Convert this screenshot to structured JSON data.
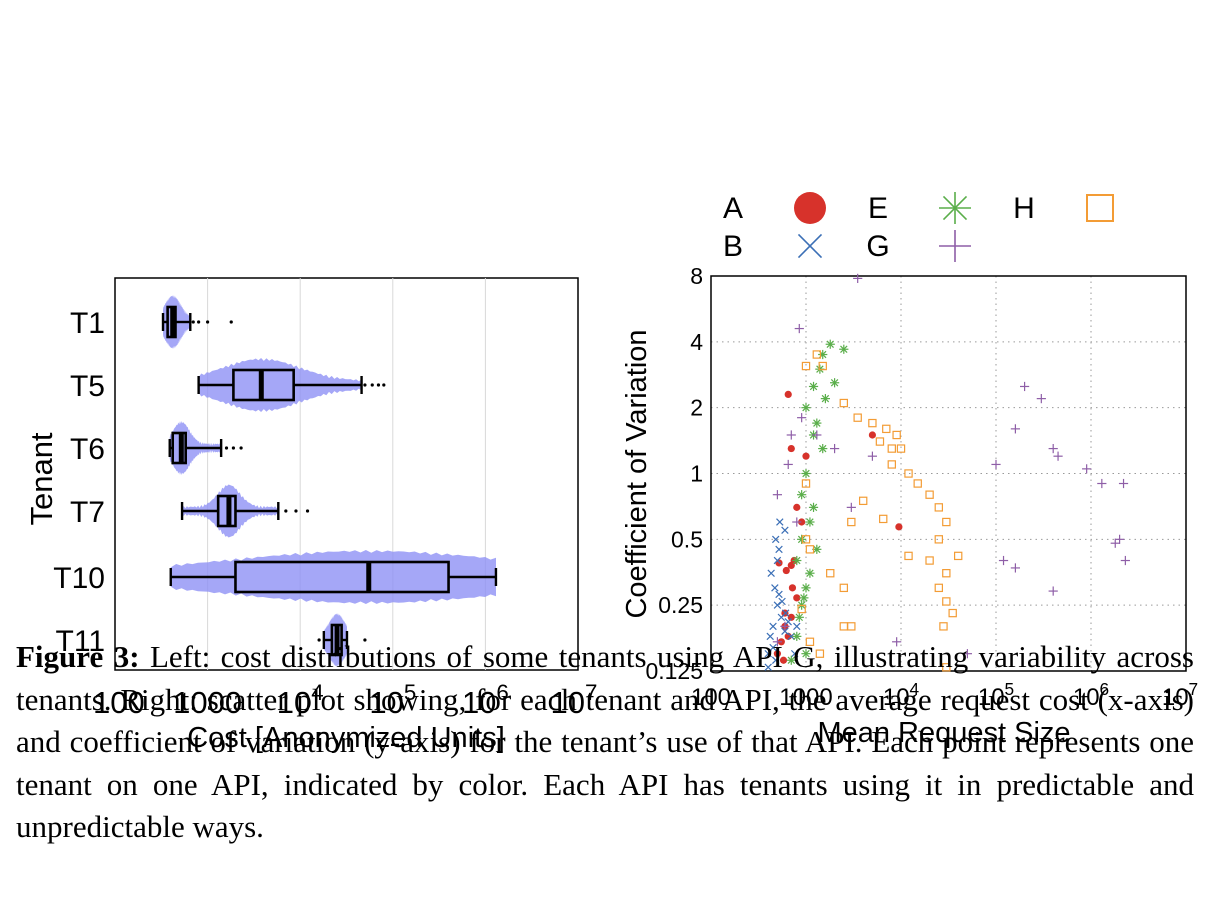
{
  "chart_data": [
    {
      "type": "box",
      "title": "",
      "xlabel": "Cost [Anonymized Units]",
      "ylabel": "Tenant",
      "x_scale": "log",
      "xlim": [
        100,
        10000000
      ],
      "x_ticks": [
        "100",
        "1000",
        "10^4",
        "10^5",
        "10^6",
        "10^7"
      ],
      "grid": "vertical",
      "categories": [
        "T1",
        "T5",
        "T6",
        "T7",
        "T10",
        "T11"
      ],
      "series": [
        {
          "q1": 370,
          "median": 420,
          "q3": 450,
          "whisker_low": 330,
          "whisker_high": 650,
          "outliers": [
            700,
            800,
            1000,
            1800
          ]
        },
        {
          "q1": 1900,
          "median": 3800,
          "q3": 8500,
          "whisker_low": 800,
          "whisker_high": 46000,
          "outliers": [
            50000,
            60000,
            70000,
            80000
          ]
        },
        {
          "q1": 420,
          "median": 520,
          "q3": 580,
          "whisker_low": 390,
          "whisker_high": 1400,
          "outliers": [
            1600,
            1900,
            2300
          ]
        },
        {
          "q1": 1300,
          "median": 1700,
          "q3": 2000,
          "whisker_low": 530,
          "whisker_high": 5800,
          "outliers": [
            7000,
            9000,
            12000
          ]
        },
        {
          "q1": 2000,
          "median": 55000,
          "q3": 400000,
          "whisker_low": 400,
          "whisker_high": 1300000,
          "outliers": []
        },
        {
          "q1": 22000,
          "median": 25000,
          "q3": 28000,
          "whisker_low": 18000,
          "whisker_high": 32000,
          "outliers": [
            16000,
            50000
          ]
        }
      ]
    },
    {
      "type": "scatter",
      "title": "",
      "xlabel": "Mean Request Size",
      "ylabel": "Coefficient of Variation",
      "x_scale": "log",
      "y_scale": "log2",
      "xlim": [
        100,
        10000000
      ],
      "ylim": [
        0.125,
        8
      ],
      "x_ticks": [
        "100",
        "1000",
        "10^4",
        "10^5",
        "10^6",
        "10^7"
      ],
      "y_ticks": [
        "0.125",
        "0.25",
        "0.5",
        "1",
        "2",
        "4",
        "8"
      ],
      "grid": "dotted",
      "legend": "top",
      "series": [
        {
          "name": "A",
          "marker": "circle",
          "color": "#d7322b",
          "points": [
            [
              550,
              0.17
            ],
            [
              600,
              0.2
            ],
            [
              500,
              0.15
            ],
            [
              700,
              0.22
            ],
            [
              650,
              0.18
            ],
            [
              580,
              0.14
            ],
            [
              620,
              0.36
            ],
            [
              700,
              0.38
            ],
            [
              520,
              0.39
            ],
            [
              800,
              0.27
            ],
            [
              750,
              0.4
            ],
            [
              650,
              2.3
            ],
            [
              700,
              1.3
            ],
            [
              800,
              0.7
            ],
            [
              900,
              0.6
            ],
            [
              1000,
              1.2
            ],
            [
              5000,
              1.5
            ],
            [
              9500,
              0.57
            ],
            [
              600,
              0.23
            ],
            [
              720,
              0.3
            ]
          ]
        },
        {
          "name": "B",
          "marker": "x",
          "color": "#3b6fb6",
          "points": [
            [
              400,
              0.15
            ],
            [
              450,
              0.2
            ],
            [
              500,
              0.25
            ],
            [
              420,
              0.18
            ],
            [
              480,
              0.14
            ],
            [
              550,
              0.22
            ],
            [
              600,
              0.19
            ],
            [
              520,
              0.28
            ],
            [
              470,
              0.3
            ],
            [
              430,
              0.35
            ],
            [
              500,
              0.4
            ],
            [
              480,
              0.5
            ],
            [
              530,
              0.6
            ],
            [
              600,
              0.55
            ],
            [
              520,
              0.45
            ],
            [
              560,
              0.26
            ],
            [
              610,
              0.23
            ],
            [
              450,
              0.16
            ],
            [
              400,
              0.13
            ],
            [
              700,
              0.18
            ],
            [
              650,
              0.21
            ],
            [
              760,
              0.15
            ],
            [
              800,
              0.2
            ]
          ]
        },
        {
          "name": "E",
          "marker": "asterisk",
          "color": "#5aae4a",
          "points": [
            [
              700,
              0.14
            ],
            [
              800,
              0.18
            ],
            [
              900,
              0.25
            ],
            [
              1000,
              0.3
            ],
            [
              800,
              0.4
            ],
            [
              900,
              0.5
            ],
            [
              1100,
              0.6
            ],
            [
              900,
              0.8
            ],
            [
              1000,
              1
            ],
            [
              1200,
              1.5
            ],
            [
              1000,
              2
            ],
            [
              1200,
              2.5
            ],
            [
              1400,
              3
            ],
            [
              1500,
              3.5
            ],
            [
              1800,
              3.9
            ],
            [
              2500,
              3.7
            ],
            [
              1600,
              2.2
            ],
            [
              1300,
              1.7
            ],
            [
              1100,
              0.35
            ],
            [
              950,
              0.27
            ],
            [
              850,
              0.22
            ],
            [
              1000,
              0.15
            ],
            [
              1300,
              0.45
            ],
            [
              1200,
              0.7
            ],
            [
              1500,
              1.3
            ],
            [
              2000,
              2.6
            ]
          ]
        },
        {
          "name": "G",
          "marker": "plus",
          "color": "#8e5ea7",
          "points": [
            [
              3500,
              7.8
            ],
            [
              850,
              4.6
            ],
            [
              700,
              1.5
            ],
            [
              900,
              1.8
            ],
            [
              650,
              1.1
            ],
            [
              500,
              0.8
            ],
            [
              800,
              0.6
            ],
            [
              1300,
              1.5
            ],
            [
              2000,
              1.3
            ],
            [
              3000,
              0.7
            ],
            [
              5000,
              1.2
            ],
            [
              9000,
              0.17
            ],
            [
              50000,
              0.15
            ],
            [
              200000,
              2.5
            ],
            [
              300000,
              2.2
            ],
            [
              160000,
              1.6
            ],
            [
              400000,
              1.3
            ],
            [
              450000,
              1.2
            ],
            [
              900000,
              1.05
            ],
            [
              1300000,
              0.9
            ],
            [
              2200000,
              0.9
            ],
            [
              1800000,
              0.48
            ],
            [
              2000000,
              0.5
            ],
            [
              2300000,
              0.4
            ],
            [
              100000,
              1.1
            ],
            [
              120000,
              0.4
            ],
            [
              160000,
              0.37
            ],
            [
              400000,
              0.29
            ],
            [
              600,
              0.2
            ],
            [
              500,
              0.17
            ]
          ]
        },
        {
          "name": "H",
          "marker": "square",
          "color": "#f39c35",
          "points": [
            [
              1300,
              3.5
            ],
            [
              1500,
              3.1
            ],
            [
              1000,
              3.1
            ],
            [
              2500,
              2.1
            ],
            [
              3500,
              1.8
            ],
            [
              5000,
              1.7
            ],
            [
              6000,
              1.4
            ],
            [
              7000,
              1.6
            ],
            [
              8000,
              1.3
            ],
            [
              9000,
              1.5
            ],
            [
              10000,
              1.3
            ],
            [
              8000,
              1.1
            ],
            [
              12000,
              1.0
            ],
            [
              15000,
              0.9
            ],
            [
              20000,
              0.8
            ],
            [
              25000,
              0.7
            ],
            [
              30000,
              0.6
            ],
            [
              25000,
              0.5
            ],
            [
              20000,
              0.4
            ],
            [
              30000,
              0.35
            ],
            [
              25000,
              0.3
            ],
            [
              30000,
              0.26
            ],
            [
              35000,
              0.23
            ],
            [
              40000,
              0.42
            ],
            [
              28000,
              0.2
            ],
            [
              30000,
              0.13
            ],
            [
              2500,
              0.2
            ],
            [
              3000,
              0.2
            ],
            [
              1400,
              0.15
            ],
            [
              1100,
              0.17
            ],
            [
              1000,
              0.5
            ],
            [
              1800,
              0.35
            ],
            [
              2500,
              0.3
            ],
            [
              3000,
              0.6
            ],
            [
              1000,
              0.9
            ],
            [
              4000,
              0.75
            ],
            [
              6500,
              0.62
            ],
            [
              900,
              0.24
            ],
            [
              1100,
              0.45
            ],
            [
              12000,
              0.42
            ]
          ]
        }
      ]
    }
  ],
  "legend": {
    "entries": [
      {
        "label": "A",
        "marker": "circle",
        "color": "#d7322b"
      },
      {
        "label": "E",
        "marker": "asterisk",
        "color": "#5aae4a"
      },
      {
        "label": "H",
        "marker": "square",
        "color": "#f39c35"
      },
      {
        "label": "B",
        "marker": "x",
        "color": "#3b6fb6"
      },
      {
        "label": "G",
        "marker": "plus",
        "color": "#8e5ea7"
      }
    ]
  },
  "colors": {
    "violin": "#8c8ef5",
    "box": "#000000"
  },
  "caption": {
    "label": "Figure 3:",
    "text": " Left: cost distributions of some tenants using API G, illustrating variability across tenants. Right: scatter plot showing, for each tenant and API, the average request cost (x-axis) and coefficient of variation (y-axis) for the tenant’s use of that API. Each point represents one tenant on one API, indicated by color. Each API has tenants using it in predictable and unpredictable ways."
  }
}
